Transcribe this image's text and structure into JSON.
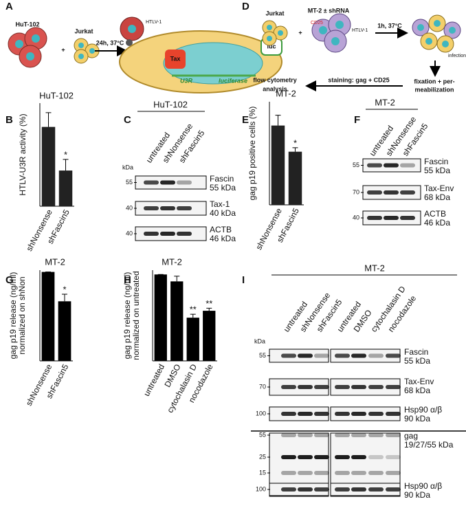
{
  "panel_labels": [
    "A",
    "B",
    "C",
    "D",
    "E",
    "F",
    "G",
    "H",
    "I"
  ],
  "diagram_A": {
    "hut": "HuT-102",
    "jurkat": "Jurkat",
    "plus": "+",
    "condition": "24h, 37°C",
    "virus": "HTLV-1",
    "tax": "Tax",
    "luc": "luc",
    "u3r": "U3R",
    "luciferase": "luciferase"
  },
  "diagram_D": {
    "jurkat": "Jurkat",
    "plus": "+",
    "mt2": "MT-2 ± shRNA",
    "cd25": "CD25",
    "virus": "HTLV-1",
    "condition": "1h, 37°C",
    "infection": "infection",
    "step_fix": [
      "fixation + per-",
      "meabilization"
    ],
    "step_stain": "staining: gag + CD25",
    "step_flow": [
      "flow cytometry",
      "analysis"
    ]
  },
  "chart_data": [
    {
      "type": "bar",
      "title": "HuT-102",
      "ylabel": [
        "HTLV-U3R activity (%)"
      ],
      "categories": [
        "shNonsense",
        "shFascin5"
      ],
      "values": [
        100,
        45
      ],
      "errors": [
        18,
        14
      ],
      "significance": [
        null,
        "*"
      ],
      "color": "#222222",
      "ylim": [
        0,
        130
      ]
    },
    {
      "type": "bar",
      "title": "MT-2",
      "ylabel": [
        "gag p19 positive cells (%)"
      ],
      "categories": [
        "shNonsense",
        "shFascin5"
      ],
      "values": [
        100,
        67
      ],
      "errors": [
        13,
        5
      ],
      "significance": [
        null,
        "*"
      ],
      "color": "#222222",
      "ylim": [
        0,
        130
      ]
    },
    {
      "type": "bar",
      "title": "MT-2",
      "ylabel": [
        "gag p19 release (ng/ml)",
        "normalized on shNon"
      ],
      "categories": [
        "shNonsense",
        "shFascin5"
      ],
      "values": [
        1.0,
        0.67
      ],
      "errors": [
        0,
        0.08
      ],
      "significance": [
        null,
        "*"
      ],
      "color": "#000000",
      "ylim": [
        0,
        1.02
      ]
    },
    {
      "type": "bar",
      "title": "MT-2",
      "ylabel": [
        "gag p19 release (ng/ml)",
        "normalized on untreated"
      ],
      "categories": [
        "untreated",
        "DMSO",
        "cytochalasin D",
        "nocodazole"
      ],
      "values": [
        1.0,
        0.92,
        0.5,
        0.58
      ],
      "errors": [
        0,
        0.06,
        0.04,
        0.03
      ],
      "significance": [
        null,
        null,
        "**",
        "**"
      ],
      "color": "#000000",
      "ylim": [
        0,
        1.05
      ]
    }
  ],
  "blots": [
    {
      "title": "HuT-102",
      "lanes": [
        "untreated",
        "shNonsense",
        "shFascin5"
      ],
      "kda": "kDa",
      "rows": [
        {
          "markers": [
            "55"
          ],
          "label": [
            "Fascin",
            "55 kDa"
          ]
        },
        {
          "markers": [
            "40"
          ],
          "label": [
            "Tax-1",
            "40 kDa"
          ]
        },
        {
          "markers": [
            "40"
          ],
          "label": [
            "ACTB",
            "46 kDa"
          ]
        }
      ]
    },
    {
      "title": "MT-2",
      "lanes": [
        "untreated",
        "shNonsense",
        "shFascin5"
      ],
      "rows": [
        {
          "markers": [
            "55"
          ],
          "label": [
            "Fascin",
            "55 kDa"
          ]
        },
        {
          "markers": [
            "70"
          ],
          "label": [
            "Tax-Env",
            "68 kDa"
          ]
        },
        {
          "markers": [
            "40"
          ],
          "label": [
            "ACTB",
            "46 kDa"
          ]
        }
      ]
    },
    {
      "title": "MT-2",
      "lanes": [
        "untreated",
        "shNonsense",
        "shFascin5",
        "untreated",
        "DMSO",
        "cytochalasin D",
        "nocodazole"
      ],
      "kda": "kDa",
      "rows": [
        {
          "markers": [
            "55"
          ],
          "label": [
            "Fascin",
            "55 kDa"
          ]
        },
        {
          "markers": [
            "70"
          ],
          "label": [
            "Tax-Env",
            "68 kDa"
          ]
        },
        {
          "markers": [
            "100"
          ],
          "label": [
            "Hsp90 α/β",
            "90 kDa"
          ]
        },
        {
          "markers": [
            "55",
            "25",
            "15"
          ],
          "label": [
            "gag",
            "19/27/55 kDa"
          ]
        },
        {
          "markers": [
            "100"
          ],
          "label": [
            "Hsp90 α/β",
            "90 kDa"
          ]
        }
      ]
    }
  ]
}
